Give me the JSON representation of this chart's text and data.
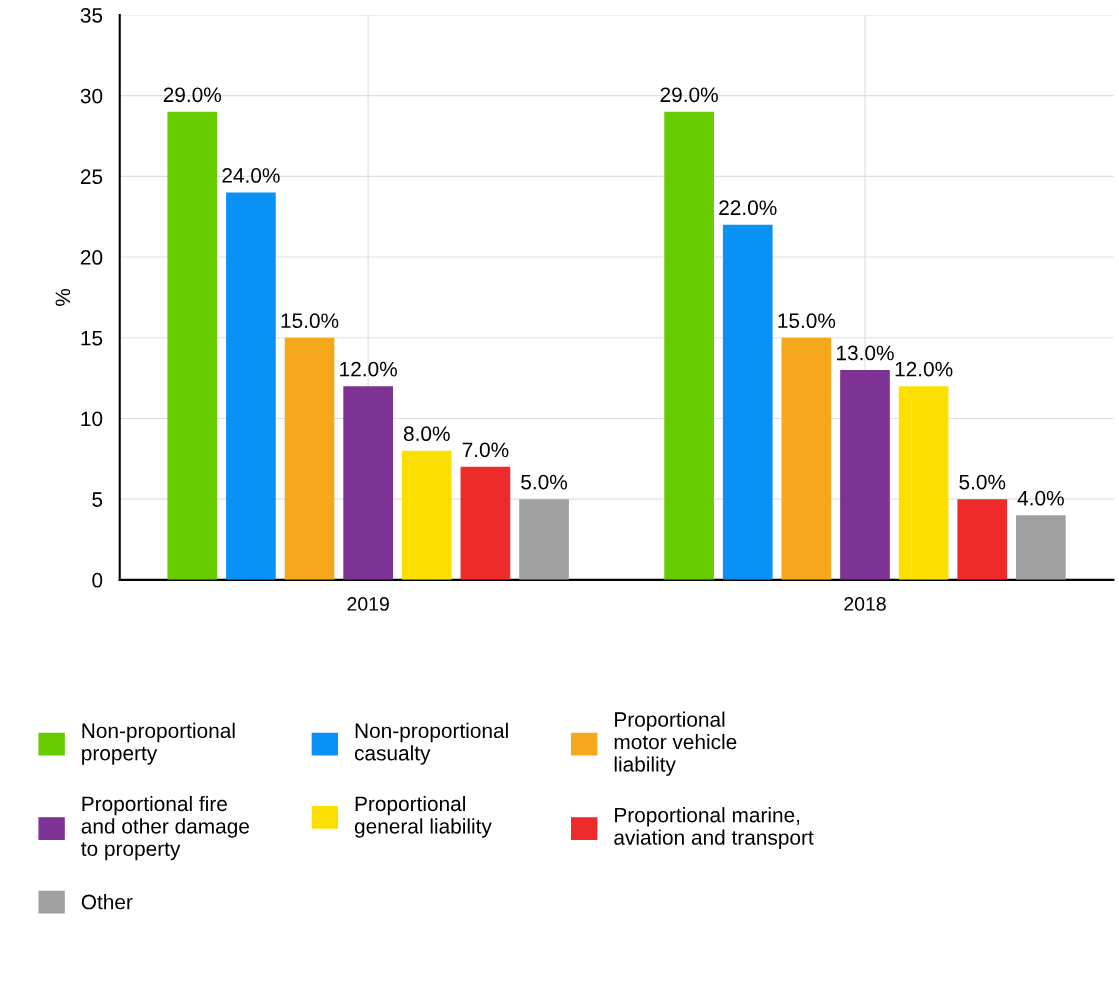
{
  "chart_data": {
    "type": "bar",
    "ylabel": "%",
    "categories": [
      "2019",
      "2018"
    ],
    "series": [
      {
        "name": "Non-proportional\nproperty",
        "color": "#66cc00",
        "values": [
          29,
          29
        ],
        "value_labels": [
          "29.0%",
          "29.0%"
        ]
      },
      {
        "name": "Non-proportional\ncasualty",
        "color": "#0a91f5",
        "values": [
          24,
          22
        ],
        "value_labels": [
          "24.0%",
          "22.0%"
        ]
      },
      {
        "name": "Proportional\nmotor vehicle\nliability",
        "color": "#f5a81c",
        "values": [
          15,
          15
        ],
        "value_labels": [
          "15.0%",
          "15.0%"
        ]
      },
      {
        "name": "Proportional fire\nand other damage\nto property",
        "color": "#7d3393",
        "values": [
          12,
          13
        ],
        "value_labels": [
          "12.0%",
          "13.0%"
        ]
      },
      {
        "name": "Proportional\ngeneral liability",
        "color": "#fadf00",
        "values": [
          8,
          12
        ],
        "value_labels": [
          "8.0%",
          "12.0%"
        ]
      },
      {
        "name": "Proportional marine,\naviation and transport",
        "color": "#ee2b2b",
        "values": [
          7,
          5
        ],
        "value_labels": [
          "7.0%",
          "5.0%"
        ]
      },
      {
        "name": "Other",
        "color": "#a0a0a0",
        "values": [
          5,
          4
        ],
        "value_labels": [
          "5.0%",
          "4.0%"
        ]
      }
    ],
    "ylim": [
      0,
      35
    ],
    "yticks": [
      0,
      5,
      10,
      15,
      20,
      25,
      30,
      35
    ],
    "grid": true,
    "legend": "bottom"
  }
}
